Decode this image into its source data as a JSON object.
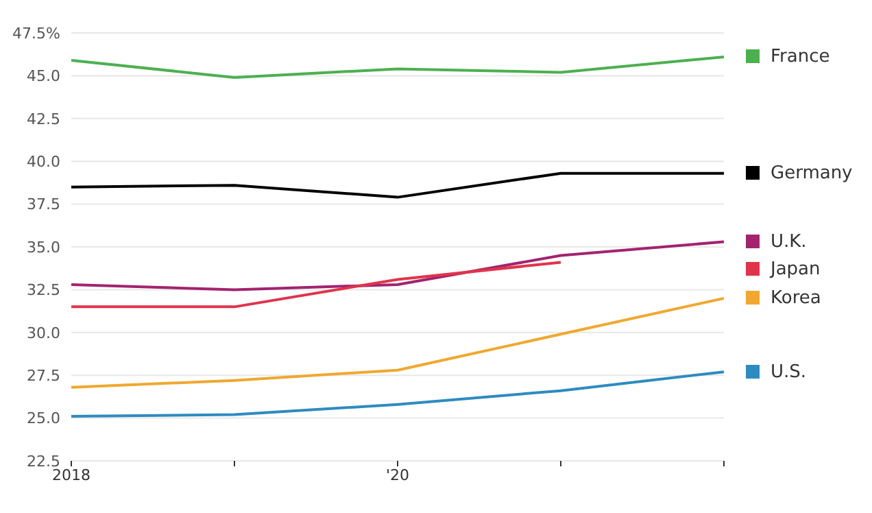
{
  "chart_data": {
    "type": "line",
    "x": [
      2018,
      2019,
      2020,
      2021,
      2022
    ],
    "xlim": [
      2018,
      2022
    ],
    "xticks": [
      2018,
      {
        "value": 2019,
        "label": null
      },
      {
        "value": 2020,
        "label": "'20"
      },
      {
        "value": 2021,
        "label": null
      },
      {
        "value": 2022,
        "label": null
      }
    ],
    "ylim": [
      22.5,
      47.5
    ],
    "yticks": [
      22.5,
      {
        "value": 25,
        "label": "25.0"
      },
      27.5,
      {
        "value": 30,
        "label": "30.0"
      },
      32.5,
      {
        "value": 35,
        "label": "35.0"
      },
      37.5,
      {
        "value": 40,
        "label": "40.0"
      },
      42.5,
      {
        "value": 45,
        "label": "45.0"
      },
      {
        "value": 47.5,
        "label": "47.5%"
      }
    ],
    "grid": "y",
    "legend": "right",
    "series": [
      {
        "name": "France",
        "color": "#4cb050",
        "values": [
          45.9,
          44.9,
          45.4,
          45.2,
          46.1
        ]
      },
      {
        "name": "Germany",
        "color": "#000000",
        "values": [
          38.5,
          38.6,
          37.9,
          39.3,
          39.3
        ]
      },
      {
        "name": "U.K.",
        "color": "#a3236f",
        "values": [
          32.8,
          32.5,
          32.8,
          34.5,
          35.3
        ]
      },
      {
        "name": "Japan",
        "color": "#e0344c",
        "values": [
          31.5,
          31.5,
          33.1,
          34.1,
          null
        ]
      },
      {
        "name": "Korea",
        "color": "#f0a830",
        "values": [
          26.8,
          27.2,
          27.8,
          29.9,
          32.0
        ]
      },
      {
        "name": "U.S.",
        "color": "#2e8bc0",
        "values": [
          25.1,
          25.2,
          25.8,
          26.6,
          27.7
        ]
      }
    ]
  }
}
